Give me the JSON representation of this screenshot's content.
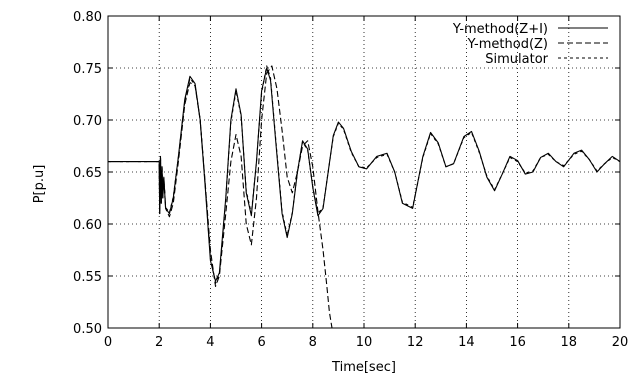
{
  "chart_data": {
    "type": "line",
    "title": "",
    "xlabel": "Time[sec]",
    "ylabel": "P[p.u]",
    "xlim": [
      0,
      20
    ],
    "ylim": [
      0.5,
      0.8
    ],
    "x_ticks": [
      0,
      2,
      4,
      6,
      8,
      10,
      12,
      14,
      16,
      18,
      20
    ],
    "y_ticks": [
      0.5,
      0.55,
      0.6,
      0.65,
      0.7,
      0.75,
      0.8
    ],
    "x_tick_labels": [
      "0",
      "2",
      "4",
      "6",
      "8",
      "10",
      "12",
      "14",
      "16",
      "18",
      "20"
    ],
    "y_tick_labels": [
      "0.50",
      "0.55",
      "0.60",
      "0.65",
      "0.70",
      "0.75",
      "0.80"
    ],
    "grid": true,
    "legend_position": "top-right",
    "series": [
      {
        "name": "Y-method(Z+I)",
        "style": "solid",
        "x": [
          0,
          2.0,
          2.02,
          2.05,
          2.08,
          2.11,
          2.14,
          2.18,
          2.25,
          2.4,
          2.55,
          2.75,
          3.0,
          3.2,
          3.4,
          3.6,
          3.8,
          4.0,
          4.2,
          4.35,
          4.6,
          4.8,
          5.0,
          5.2,
          5.4,
          5.6,
          5.8,
          6.0,
          6.2,
          6.35,
          6.55,
          6.8,
          7.0,
          7.2,
          7.4,
          7.6,
          7.8,
          8.0,
          8.2,
          8.4,
          8.6,
          8.8,
          9.0,
          9.2,
          9.5,
          9.8,
          10.1,
          10.5,
          10.9,
          11.2,
          11.5,
          11.9,
          12.3,
          12.6,
          12.9,
          13.2,
          13.5,
          13.9,
          14.2,
          14.5,
          14.8,
          15.1,
          15.4,
          15.7,
          16.0,
          16.3,
          16.6,
          16.9,
          17.2,
          17.5,
          17.8,
          18.2,
          18.5,
          18.8,
          19.1,
          19.4,
          19.7,
          20.0
        ],
        "y": [
          0.66,
          0.66,
          0.61,
          0.665,
          0.62,
          0.655,
          0.625,
          0.645,
          0.615,
          0.61,
          0.625,
          0.665,
          0.72,
          0.742,
          0.735,
          0.7,
          0.635,
          0.565,
          0.545,
          0.553,
          0.625,
          0.7,
          0.73,
          0.705,
          0.63,
          0.608,
          0.66,
          0.728,
          0.75,
          0.738,
          0.68,
          0.61,
          0.587,
          0.61,
          0.65,
          0.68,
          0.672,
          0.635,
          0.608,
          0.615,
          0.65,
          0.685,
          0.698,
          0.692,
          0.67,
          0.655,
          0.653,
          0.665,
          0.668,
          0.65,
          0.62,
          0.615,
          0.665,
          0.688,
          0.678,
          0.655,
          0.658,
          0.684,
          0.689,
          0.67,
          0.645,
          0.632,
          0.648,
          0.665,
          0.661,
          0.648,
          0.65,
          0.664,
          0.668,
          0.66,
          0.655,
          0.668,
          0.671,
          0.662,
          0.65,
          0.658,
          0.665,
          0.66
        ]
      },
      {
        "name": "Y-method(Z)",
        "style": "dashed",
        "x": [
          0,
          2.0,
          2.02,
          2.05,
          2.08,
          2.11,
          2.14,
          2.18,
          2.25,
          2.4,
          2.55,
          2.75,
          3.0,
          3.2,
          3.4,
          3.6,
          3.8,
          4.0,
          4.2,
          4.35,
          4.6,
          4.8,
          5.0,
          5.2,
          5.4,
          5.6,
          5.8,
          6.0,
          6.2,
          6.4,
          6.6,
          6.8,
          7.0,
          7.2,
          7.4,
          7.6,
          7.8,
          8.0,
          8.2,
          8.4,
          8.55,
          8.65,
          8.75
        ],
        "y": [
          0.66,
          0.66,
          0.61,
          0.665,
          0.62,
          0.655,
          0.625,
          0.645,
          0.615,
          0.607,
          0.62,
          0.66,
          0.715,
          0.736,
          0.733,
          0.7,
          0.638,
          0.575,
          0.54,
          0.55,
          0.61,
          0.66,
          0.686,
          0.665,
          0.6,
          0.58,
          0.625,
          0.7,
          0.745,
          0.752,
          0.73,
          0.69,
          0.645,
          0.63,
          0.65,
          0.675,
          0.68,
          0.655,
          0.612,
          0.575,
          0.54,
          0.515,
          0.5
        ]
      },
      {
        "name": "Simulator",
        "style": "dotted",
        "x": [
          0,
          2.0,
          2.02,
          2.05,
          2.08,
          2.11,
          2.14,
          2.18,
          2.25,
          2.4,
          2.55,
          2.75,
          3.0,
          3.2,
          3.4,
          3.6,
          3.8,
          4.0,
          4.2,
          4.35,
          4.6,
          4.8,
          5.0,
          5.2,
          5.4,
          5.6,
          5.8,
          6.0,
          6.2,
          6.35,
          6.55,
          6.8,
          7.0,
          7.2,
          7.4,
          7.6,
          7.8,
          8.0,
          8.2,
          8.4,
          8.6,
          8.8,
          9.0,
          9.2,
          9.5,
          9.8,
          10.1,
          10.5,
          10.9,
          11.2,
          11.5,
          11.9,
          12.3,
          12.6,
          12.9,
          13.2,
          13.5,
          13.9,
          14.2,
          14.5,
          14.8,
          15.1,
          15.4,
          15.7,
          16.0,
          16.3,
          16.6,
          16.9,
          17.2,
          17.5,
          17.8,
          18.2,
          18.5,
          18.8,
          19.1,
          19.4,
          19.7,
          20.0
        ],
        "y": [
          0.66,
          0.66,
          0.612,
          0.664,
          0.621,
          0.654,
          0.626,
          0.644,
          0.616,
          0.611,
          0.626,
          0.664,
          0.718,
          0.74,
          0.734,
          0.7,
          0.637,
          0.567,
          0.543,
          0.551,
          0.624,
          0.698,
          0.728,
          0.704,
          0.632,
          0.61,
          0.66,
          0.726,
          0.752,
          0.74,
          0.682,
          0.612,
          0.589,
          0.611,
          0.65,
          0.679,
          0.671,
          0.636,
          0.61,
          0.616,
          0.65,
          0.684,
          0.697,
          0.691,
          0.669,
          0.655,
          0.654,
          0.664,
          0.667,
          0.65,
          0.621,
          0.616,
          0.664,
          0.687,
          0.677,
          0.655,
          0.658,
          0.683,
          0.688,
          0.669,
          0.646,
          0.633,
          0.648,
          0.664,
          0.66,
          0.649,
          0.651,
          0.664,
          0.667,
          0.66,
          0.656,
          0.667,
          0.67,
          0.662,
          0.651,
          0.658,
          0.664,
          0.66
        ]
      }
    ]
  }
}
